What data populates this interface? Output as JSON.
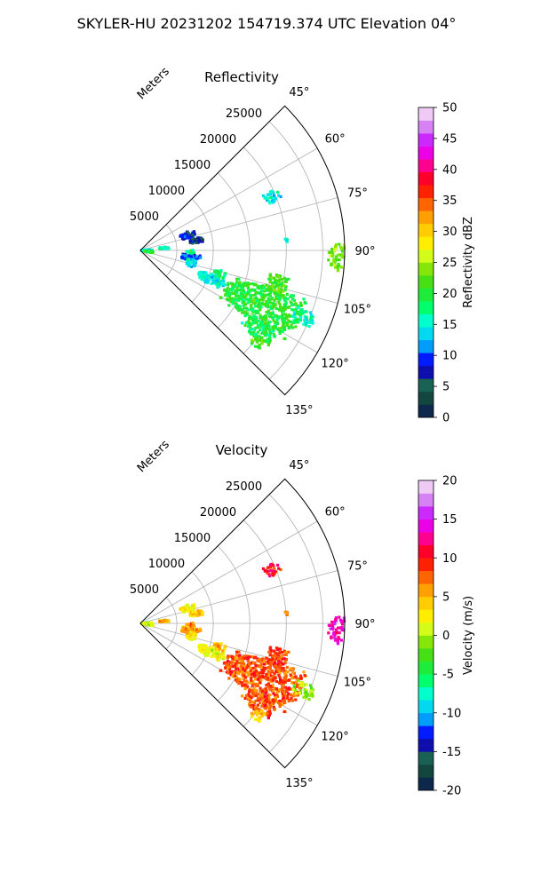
{
  "figure": {
    "title": "SKYLER-HU  20231202  154719.374 UTC Elevation 04°"
  },
  "chart_data": [
    {
      "type": "polar-sector",
      "title": "Reflectivity",
      "radial_label": "Meters",
      "radial_ticks": [
        5000,
        10000,
        15000,
        20000,
        25000
      ],
      "radial_max": 28000,
      "angle_range_deg": [
        45,
        135
      ],
      "angle_ticks": [
        "45°",
        "60°",
        "75°",
        "90°",
        "105°",
        "120°",
        "135°"
      ],
      "grid": true,
      "colorbar": {
        "label": "Reflectivity dBZ",
        "min": 0,
        "max": 50,
        "ticks": [
          0,
          5,
          10,
          15,
          20,
          25,
          30,
          35,
          40,
          45,
          50
        ]
      },
      "echoes": [
        {
          "az": 89,
          "r": 600,
          "w": 5,
          "dr": 1400,
          "v": 14
        },
        {
          "az": 99,
          "r": 1200,
          "w": 4,
          "dr": 900,
          "v": 20
        },
        {
          "az": 84,
          "r": 3200,
          "w": 3,
          "dr": 900,
          "v": 16
        },
        {
          "az": 72,
          "r": 6800,
          "w": 5,
          "dr": 1300,
          "v": 8
        },
        {
          "az": 80,
          "r": 7600,
          "w": 3,
          "dr": 1500,
          "v": 6
        },
        {
          "az": 92,
          "r": 6900,
          "w": 3,
          "dr": 700,
          "v": 18
        },
        {
          "az": 98,
          "r": 6900,
          "w": 4,
          "dr": 1800,
          "v": 10
        },
        {
          "az": 104,
          "r": 7200,
          "w": 5,
          "dr": 900,
          "v": 14
        },
        {
          "az": 112,
          "r": 10500,
          "w": 5,
          "dr": 2500,
          "v": 15
        },
        {
          "az": 106,
          "r": 11300,
          "w": 3,
          "dr": 1000,
          "v": 18
        },
        {
          "az": 114,
          "r": 18200,
          "w": 10,
          "dr": 7000,
          "v": 20
        },
        {
          "az": 104,
          "r": 19300,
          "w": 5,
          "dr": 1800,
          "v": 22
        },
        {
          "az": 124,
          "r": 19600,
          "w": 4,
          "dr": 3200,
          "v": 19
        },
        {
          "az": 128,
          "r": 20400,
          "w": 3,
          "dr": 1000,
          "v": 23
        },
        {
          "az": 112,
          "r": 24300,
          "w": 3,
          "dr": 2000,
          "v": 16
        },
        {
          "az": 68,
          "r": 19500,
          "w": 3,
          "dr": 1500,
          "v": 14
        },
        {
          "az": 92,
          "r": 27200,
          "w": 5,
          "dr": 1800,
          "v": 24
        },
        {
          "az": 86,
          "r": 20200,
          "w": 1,
          "dr": 400,
          "v": 15
        }
      ]
    },
    {
      "type": "polar-sector",
      "title": "Velocity",
      "radial_label": "Meters",
      "radial_ticks": [
        5000,
        10000,
        15000,
        20000,
        25000
      ],
      "radial_max": 28000,
      "angle_range_deg": [
        45,
        135
      ],
      "angle_ticks": [
        "45°",
        "60°",
        "75°",
        "90°",
        "105°",
        "120°",
        "135°"
      ],
      "grid": true,
      "colorbar": {
        "label": "Velocity (m/s)",
        "min": -20,
        "max": 20,
        "ticks": [
          -20,
          -15,
          -10,
          -5,
          0,
          5,
          10,
          15,
          20
        ]
      },
      "echoes": [
        {
          "az": 89,
          "r": 600,
          "w": 5,
          "dr": 1400,
          "v": 0
        },
        {
          "az": 99,
          "r": 1200,
          "w": 4,
          "dr": 900,
          "v": 1
        },
        {
          "az": 84,
          "r": 3200,
          "w": 3,
          "dr": 900,
          "v": 5
        },
        {
          "az": 72,
          "r": 6800,
          "w": 5,
          "dr": 1300,
          "v": 2
        },
        {
          "az": 80,
          "r": 7600,
          "w": 3,
          "dr": 1500,
          "v": 4
        },
        {
          "az": 92,
          "r": 6900,
          "w": 3,
          "dr": 700,
          "v": 7
        },
        {
          "az": 98,
          "r": 6900,
          "w": 4,
          "dr": 1800,
          "v": 6
        },
        {
          "az": 104,
          "r": 7200,
          "w": 5,
          "dr": 900,
          "v": 3
        },
        {
          "az": 112,
          "r": 10500,
          "w": 5,
          "dr": 2500,
          "v": 2
        },
        {
          "az": 106,
          "r": 11300,
          "w": 3,
          "dr": 1000,
          "v": 5
        },
        {
          "az": 114,
          "r": 18200,
          "w": 10,
          "dr": 7000,
          "v": 8
        },
        {
          "az": 104,
          "r": 19300,
          "w": 5,
          "dr": 1800,
          "v": 9
        },
        {
          "az": 124,
          "r": 19600,
          "w": 4,
          "dr": 3200,
          "v": 8
        },
        {
          "az": 128,
          "r": 20400,
          "w": 3,
          "dr": 1000,
          "v": 5
        },
        {
          "az": 112,
          "r": 24300,
          "w": 3,
          "dr": 2000,
          "v": 0
        },
        {
          "az": 68,
          "r": 19500,
          "w": 3,
          "dr": 1500,
          "v": 10
        },
        {
          "az": 92,
          "r": 27200,
          "w": 5,
          "dr": 1800,
          "v": 14
        },
        {
          "az": 86,
          "r": 20200,
          "w": 1,
          "dr": 400,
          "v": 6
        }
      ]
    }
  ]
}
